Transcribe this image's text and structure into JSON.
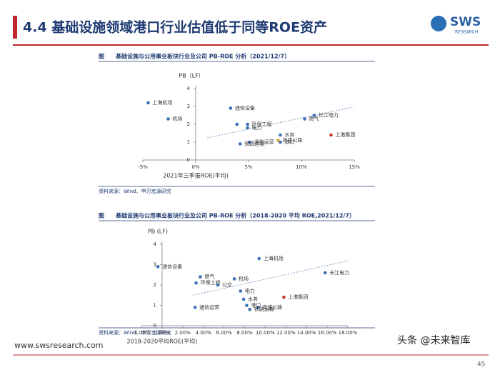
{
  "slide": {
    "title": "4.4 基础设施领域港口行业估值低于同等ROE资产",
    "logo": "SWS",
    "logo_sub": "RESEARCH",
    "footer": "www.swsresearch.com",
    "page": "45",
    "watermark": "头条 @未来智库"
  },
  "chart_data": [
    {
      "type": "scatter",
      "title": "图　　基础设施与公用事业板块行业及公司 PB-ROE 分析（2021/12/7）",
      "source": "资料来源：Wind、申万宏源研究",
      "y_label": "PB（LF）",
      "x_label": "2021年三季报ROE(平均)",
      "xlim": [
        -5,
        15
      ],
      "xticks": [
        {
          "value": -5,
          "label": "-5%"
        },
        {
          "value": 0,
          "label": "0%"
        },
        {
          "value": 5,
          "label": "5%"
        },
        {
          "value": 10,
          "label": "10%"
        },
        {
          "value": 15,
          "label": "15%"
        }
      ],
      "ylim": [
        0,
        4
      ],
      "yticks": [
        0,
        1,
        2,
        3,
        4
      ],
      "color": "#3b6fb6",
      "labels": [
        "上海机场",
        "机场",
        "通信设备",
        null,
        "环保工程",
        "电力",
        "水务",
        "港口",
        "通信运营",
        "铁路运输",
        "高速公路",
        "燃气",
        "长江电力",
        "上港集团"
      ],
      "x": [
        -4.5,
        -2.6,
        3.3,
        3.9,
        4.9,
        4.9,
        8.0,
        8.0,
        5.1,
        4.2,
        7.8,
        10.3,
        11.2,
        12.8
      ],
      "y": [
        3.2,
        2.3,
        2.9,
        2.0,
        2.0,
        1.8,
        1.4,
        1.0,
        1.0,
        0.9,
        1.1,
        2.3,
        2.5,
        1.4
      ],
      "colors": [
        "#3b6fb6",
        "#3b6fb6",
        "#3b6fb6",
        "#3b6fb6",
        "#3b6fb6",
        "#3b6fb6",
        "#3b6fb6",
        "#3b6fb6",
        "#3b6fb6",
        "#3b6fb6",
        "#d4a83a",
        "#3b6fb6",
        "#3b6fb6",
        "#c0392b"
      ],
      "trendline": {
        "x": [
          1.1,
          14.9
        ],
        "y": [
          1.24,
          2.96
        ]
      }
    },
    {
      "type": "scatter",
      "title": "图　　基础设施与公用事业板块行业及公司 PB-ROE 分析（2018-2020 平均 ROE,2021/12/7）",
      "source": "资料来源：Wind、申万宏源研究",
      "y_label": "PB (LF)",
      "x_label": "2018-2020平均ROE(平均)",
      "xlim": [
        -2,
        18
      ],
      "xticks": [
        {
          "value": -2,
          "label": "-2.00%"
        },
        {
          "value": 0,
          "label": "0.00%"
        },
        {
          "value": 2,
          "label": "2.00%"
        },
        {
          "value": 4,
          "label": "4.00%"
        },
        {
          "value": 6,
          "label": "6.00%"
        },
        {
          "value": 8,
          "label": "8.00%"
        },
        {
          "value": 10,
          "label": "10.00%"
        },
        {
          "value": 12,
          "label": "12.00%"
        },
        {
          "value": 14,
          "label": "14.00%"
        },
        {
          "value": 16,
          "label": "16.00%"
        },
        {
          "value": 18,
          "label": "18.00%"
        }
      ],
      "ylim": [
        0,
        4
      ],
      "yticks": [
        0,
        1,
        2,
        3,
        4
      ],
      "color": "#3b6fb6",
      "labels": [
        "通信设备",
        "燃气",
        "环保工程",
        "公交",
        "机场",
        "电力",
        "上海机场",
        "长江电力",
        "水务",
        "港口",
        "通信运营",
        "高速公路",
        "铁路运输",
        "上港集团"
      ],
      "x": [
        -0.4,
        3.7,
        3.3,
        5.4,
        7.0,
        7.6,
        9.4,
        15.8,
        7.9,
        8.2,
        3.2,
        9.3,
        8.5,
        11.8
      ],
      "y": [
        2.9,
        2.4,
        2.1,
        2.0,
        2.3,
        1.7,
        3.3,
        2.6,
        1.3,
        1.0,
        0.9,
        0.9,
        0.8,
        1.4
      ],
      "colors": [
        "#3b6fb6",
        "#3b6fb6",
        "#3b6fb6",
        "#3b6fb6",
        "#3b6fb6",
        "#3b6fb6",
        "#3b6fb6",
        "#3b6fb6",
        "#3b6fb6",
        "#3b6fb6",
        "#3b6fb6",
        "#3b6fb6",
        "#3b6fb6",
        "#c0392b"
      ],
      "trendline": {
        "x": [
          3.0,
          18.1
        ],
        "y": [
          1.5,
          3.2
        ]
      }
    }
  ]
}
